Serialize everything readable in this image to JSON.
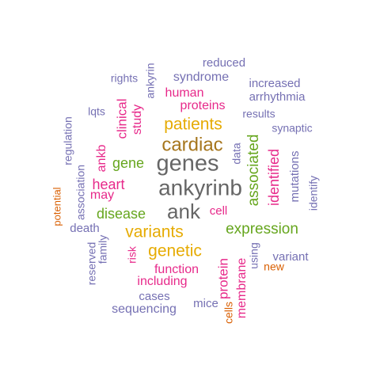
{
  "colors": {
    "gray": "#666666",
    "purple": "#7570B3",
    "pink": "#E7298A",
    "gold": "#E6AB02",
    "brown": "#A6761D",
    "green": "#66A61E",
    "orange": "#D95F02"
  },
  "words": [
    {
      "text": "ankyrinb",
      "color": "gray"
    },
    {
      "text": "genes",
      "color": "gray"
    },
    {
      "text": "ank",
      "color": "gray"
    },
    {
      "text": "cardiac",
      "color": "brown"
    },
    {
      "text": "patients",
      "color": "gold"
    },
    {
      "text": "variants",
      "color": "gold"
    },
    {
      "text": "genetic",
      "color": "gold"
    },
    {
      "text": "expression",
      "color": "green"
    },
    {
      "text": "disease",
      "color": "green"
    },
    {
      "text": "gene",
      "color": "green"
    },
    {
      "text": "associated",
      "color": "green"
    },
    {
      "text": "identified",
      "color": "pink"
    },
    {
      "text": "heart",
      "color": "pink"
    },
    {
      "text": "may",
      "color": "pink"
    },
    {
      "text": "ankb",
      "color": "pink"
    },
    {
      "text": "clinical",
      "color": "pink"
    },
    {
      "text": "study",
      "color": "pink"
    },
    {
      "text": "human",
      "color": "pink"
    },
    {
      "text": "proteins",
      "color": "pink"
    },
    {
      "text": "cell",
      "color": "pink"
    },
    {
      "text": "function",
      "color": "pink"
    },
    {
      "text": "including",
      "color": "pink"
    },
    {
      "text": "protein",
      "color": "pink"
    },
    {
      "text": "membrane",
      "color": "pink"
    },
    {
      "text": "risk",
      "color": "pink"
    },
    {
      "text": "reduced",
      "color": "purple"
    },
    {
      "text": "ankyrin",
      "color": "purple"
    },
    {
      "text": "rights",
      "color": "purple"
    },
    {
      "text": "syndrome",
      "color": "purple"
    },
    {
      "text": "increased",
      "color": "purple"
    },
    {
      "text": "arrhythmia",
      "color": "purple"
    },
    {
      "text": "lqts",
      "color": "purple"
    },
    {
      "text": "results",
      "color": "purple"
    },
    {
      "text": "synaptic",
      "color": "purple"
    },
    {
      "text": "regulation",
      "color": "purple"
    },
    {
      "text": "data",
      "color": "purple"
    },
    {
      "text": "mutations",
      "color": "purple"
    },
    {
      "text": "identify",
      "color": "purple"
    },
    {
      "text": "association",
      "color": "purple"
    },
    {
      "text": "death",
      "color": "purple"
    },
    {
      "text": "reserved",
      "color": "purple"
    },
    {
      "text": "family",
      "color": "purple"
    },
    {
      "text": "using",
      "color": "purple"
    },
    {
      "text": "variant",
      "color": "purple"
    },
    {
      "text": "cases",
      "color": "purple"
    },
    {
      "text": "sequencing",
      "color": "purple"
    },
    {
      "text": "mice",
      "color": "purple"
    },
    {
      "text": "potential",
      "color": "orange"
    },
    {
      "text": "new",
      "color": "orange"
    },
    {
      "text": "cells",
      "color": "orange"
    }
  ]
}
